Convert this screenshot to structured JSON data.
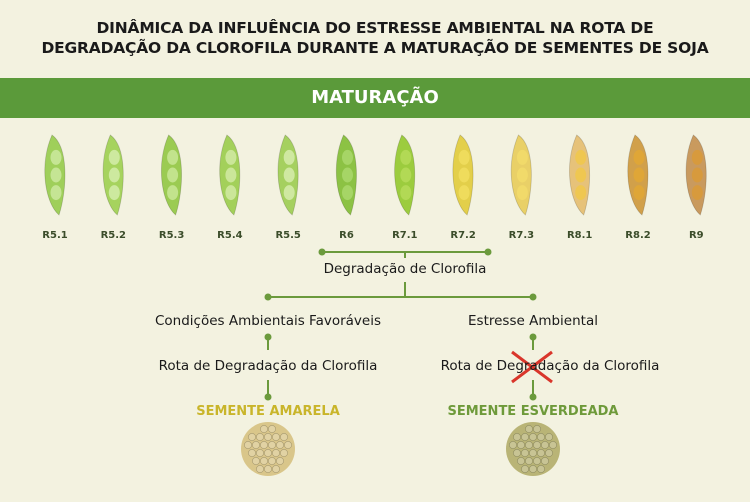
{
  "title": {
    "line1": "DINÂMICA DA INFLUÊNCIA DO ESTRESSE AMBIENTAL NA ROTA DE",
    "line2": "DEGRADAÇÃO DA CLOROFILA DURANTE A MATURAÇÃO DE SEMENTES DE SOJA"
  },
  "banner": {
    "label": "MATURAÇÃO"
  },
  "stages": [
    {
      "label": "R5.1",
      "pod": "#9fcf5a",
      "seed": "#c9e79a"
    },
    {
      "label": "R5.2",
      "pod": "#a6d35e",
      "seed": "#d2eba6"
    },
    {
      "label": "R5.3",
      "pod": "#9bcb52",
      "seed": "#c7e592"
    },
    {
      "label": "R5.4",
      "pod": "#a3d05a",
      "seed": "#cfe8a0"
    },
    {
      "label": "R5.5",
      "pod": "#a5d05f",
      "seed": "#d4eaa8"
    },
    {
      "label": "R6",
      "pod": "#8cc244",
      "seed": "#a9d76a"
    },
    {
      "label": "R7.1",
      "pod": "#9ccc3e",
      "seed": "#b5da58"
    },
    {
      "label": "R7.2",
      "pod": "#e3cf4a",
      "seed": "#f0dd5e"
    },
    {
      "label": "R7.3",
      "pod": "#e9d067",
      "seed": "#f2da6a"
    },
    {
      "label": "R8.1",
      "pod": "#e6c27a",
      "seed": "#efc84c"
    },
    {
      "label": "R8.2",
      "pod": "#d1a04a",
      "seed": "#e0a635"
    },
    {
      "label": "R9",
      "pod": "#c99a5e",
      "seed": "#d89a3a"
    }
  ],
  "degradation": "Degradação de Clorofila",
  "left_branch": {
    "condition": "Condições Ambientais Favoráveis",
    "route": "Rota de Degradação da Clorofila",
    "outcome": "SEMENTE AMARELA",
    "outcome_color": "#c9b52a",
    "seed_color": "#d9c68a"
  },
  "right_branch": {
    "condition": "Estresse Ambiental",
    "route": "Rota de Degradação da Clorofila",
    "outcome": "SEMENTE ESVERDEADA",
    "outcome_color": "#6e9a3a",
    "seed_color": "#b9b476"
  },
  "colors": {
    "line": "#6b9a3c",
    "block": "#d9362b",
    "banner": "#5b9a3a"
  }
}
